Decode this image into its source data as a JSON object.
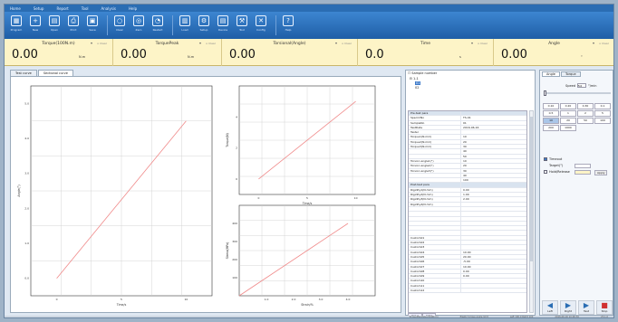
{
  "menu": [
    "Home",
    "Setup",
    "Report",
    "Tool",
    "Analysis",
    "Help"
  ],
  "ribbon": [
    {
      "label": "Program",
      "icon": "program-icon",
      "glyph": "▦"
    },
    {
      "label": "New",
      "icon": "new-file-icon",
      "glyph": "+"
    },
    {
      "label": "Open",
      "icon": "open-folder-icon",
      "glyph": "▤"
    },
    {
      "label": "Print",
      "icon": "print-icon",
      "glyph": "⎙"
    },
    {
      "label": "Save",
      "icon": "save-icon",
      "glyph": "▣"
    },
    {
      "sep": true
    },
    {
      "label": "Clear",
      "icon": "clear-icon",
      "glyph": "○"
    },
    {
      "label": "Zero",
      "icon": "zero-icon",
      "glyph": "◎"
    },
    {
      "label": "Restart",
      "icon": "restart-icon",
      "glyph": "◔"
    },
    {
      "sep": true
    },
    {
      "label": "Load",
      "icon": "load-icon",
      "glyph": "▥"
    },
    {
      "label": "Setup",
      "icon": "setup-icon",
      "glyph": "⚙"
    },
    {
      "label": "Device",
      "icon": "device-icon",
      "glyph": "▤"
    },
    {
      "label": "Tool",
      "icon": "tool-icon",
      "glyph": "⚒"
    },
    {
      "label": "Config",
      "icon": "config-icon",
      "glyph": "✕"
    },
    {
      "sep": true
    },
    {
      "label": "Help",
      "icon": "help-icon",
      "glyph": "?"
    }
  ],
  "readouts": [
    {
      "title": "Torque(100N.m)",
      "value": "0.00",
      "unit": "N.m",
      "clear": "Clear"
    },
    {
      "title": "TorquePeak",
      "value": "0.00",
      "unit": "N.m",
      "clear": "Clear"
    },
    {
      "title": "Torsional(Angle)",
      "value": "0.00",
      "unit": "",
      "clear": "Clear"
    },
    {
      "title": "Time",
      "value": "0.0",
      "unit": "s",
      "clear": "Clear"
    },
    {
      "title": "Angle",
      "value": "0.00",
      "unit": "°",
      "clear": "Clear"
    }
  ],
  "tabs": [
    "Test curve",
    "Sectional curve"
  ],
  "chart_data": [
    {
      "type": "line",
      "xlabel": "Time/s",
      "ylabel": "Angle(°)",
      "x": [
        0,
        10
      ],
      "y": [
        0,
        4.5
      ],
      "xlim": [
        -2,
        12
      ],
      "ylim": [
        -0.5,
        5.5
      ],
      "xticks": [
        "0",
        "5",
        "10"
      ],
      "yticks": [
        "0.0",
        "1.0",
        "2.0",
        "3.0",
        "4.0",
        "5.0"
      ]
    },
    {
      "type": "line",
      "xlabel": "Time/s",
      "ylabel": "Torque(N)",
      "x": [
        0,
        10
      ],
      "y": [
        0,
        5
      ],
      "xlim": [
        -2,
        12
      ],
      "ylim": [
        -1,
        6
      ],
      "xticks": [
        "0",
        "5",
        "10"
      ],
      "yticks": [
        "0",
        "2",
        "4"
      ]
    },
    {
      "type": "line",
      "xlabel": "Strain/%",
      "ylabel": "Stress(MPa)",
      "x": [
        0,
        4
      ],
      "y": [
        0,
        400
      ],
      "xlim": [
        0,
        5
      ],
      "ylim": [
        0,
        500
      ],
      "xticks": [
        "1.0",
        "2.0",
        "3.0",
        "4.0"
      ],
      "yticks": [
        "100",
        "200",
        "300",
        "400"
      ]
    }
  ],
  "sample": {
    "header": "Sample number",
    "tree": [
      "1-1",
      "01",
      "02"
    ]
  },
  "pretest": [
    {
      "k": "Pre-test para",
      "v": "",
      "hdr": true
    },
    {
      "k": "SpecimNo",
      "v": "TS-01"
    },
    {
      "k": "SampleNo",
      "v": "01"
    },
    {
      "k": "TestDate",
      "v": "2016-06-16"
    },
    {
      "k": "Tester",
      "v": ""
    },
    {
      "k": "Torque1(N.mm)",
      "v": "10"
    },
    {
      "k": "Torque2(N.mm)",
      "v": "20"
    },
    {
      "k": "Torque3(N.mm)",
      "v": "30"
    },
    {
      "k": "",
      "v": "40"
    },
    {
      "k": "",
      "v": "50"
    },
    {
      "k": "Torsion angle1(°)",
      "v": "10"
    },
    {
      "k": "Torsion angle2(°)",
      "v": "20"
    },
    {
      "k": "Torsion angle3(°)",
      "v": "30"
    },
    {
      "k": "",
      "v": "40"
    },
    {
      "k": "",
      "v": "100"
    },
    {
      "k": "Post-test para",
      "v": "",
      "hdr": true
    },
    {
      "k": "Rigidity1(N.mm)",
      "v": "0.00"
    },
    {
      "k": "Rigidity2(N.mm)",
      "v": "1.00"
    },
    {
      "k": "Rigidity3(N.mm)",
      "v": "2.00"
    },
    {
      "k": "Rigidity4(N.mm)",
      "v": ""
    },
    {
      "k": "",
      "v": ""
    },
    {
      "k": "",
      "v": ""
    },
    {
      "k": "",
      "v": ""
    },
    {
      "k": "",
      "v": ""
    },
    {
      "k": "",
      "v": ""
    },
    {
      "k": "",
      "v": ""
    },
    {
      "k": "Custom01",
      "v": ""
    },
    {
      "k": "Custom02",
      "v": ""
    },
    {
      "k": "Custom03",
      "v": ""
    },
    {
      "k": "Custom04",
      "v": "10.00"
    },
    {
      "k": "Custom05",
      "v": "20.00"
    },
    {
      "k": "Custom06",
      "v": "-5.00"
    },
    {
      "k": "Custom07",
      "v": "10.00"
    },
    {
      "k": "Custom08",
      "v": "0.00"
    },
    {
      "k": "Custom09",
      "v": "0.00"
    },
    {
      "k": "Custom10",
      "v": ""
    },
    {
      "k": "Custom11",
      "v": ""
    },
    {
      "k": "Custom12",
      "v": ""
    }
  ],
  "bottomtabs": [
    "Value",
    "Data"
  ],
  "control": {
    "tabs": [
      "Angle",
      "Torque"
    ],
    "speed_label": "Speed",
    "speed_value": "5.0",
    "speed_unit": "°/min",
    "grid": [
      "0.10",
      "0.20",
      "0.30",
      "0.1",
      "0.5",
      "1",
      "2",
      "5",
      "10",
      "20",
      "50",
      "100",
      "200",
      "1000"
    ],
    "grid_highlight": [
      8
    ],
    "opt1": "Timeout",
    "opt1_sub": "Target(°)",
    "opt2": "Hold/Release",
    "apply": "Apply",
    "actions": [
      {
        "label": "Left",
        "glyph": "◀"
      },
      {
        "label": "Right",
        "glyph": "▶"
      },
      {
        "label": "Test",
        "glyph": "▶"
      },
      {
        "label": "Stop",
        "glyph": "■"
      },
      {
        "label": "Reset",
        "glyph": "▤"
      }
    ]
  },
  "status": [
    "TorqueMaxValue(100N.m)",
    "Elastic torque angle limit",
    "Left 100.0 Right 100",
    "2016-06-16 10:48:30",
    "V3.1.0"
  ],
  "colors": {
    "line": "#f08a8a",
    "grid": "#cccccc",
    "ribbon": "#2a6db3",
    "readout_bg": "#fdf4c7"
  }
}
